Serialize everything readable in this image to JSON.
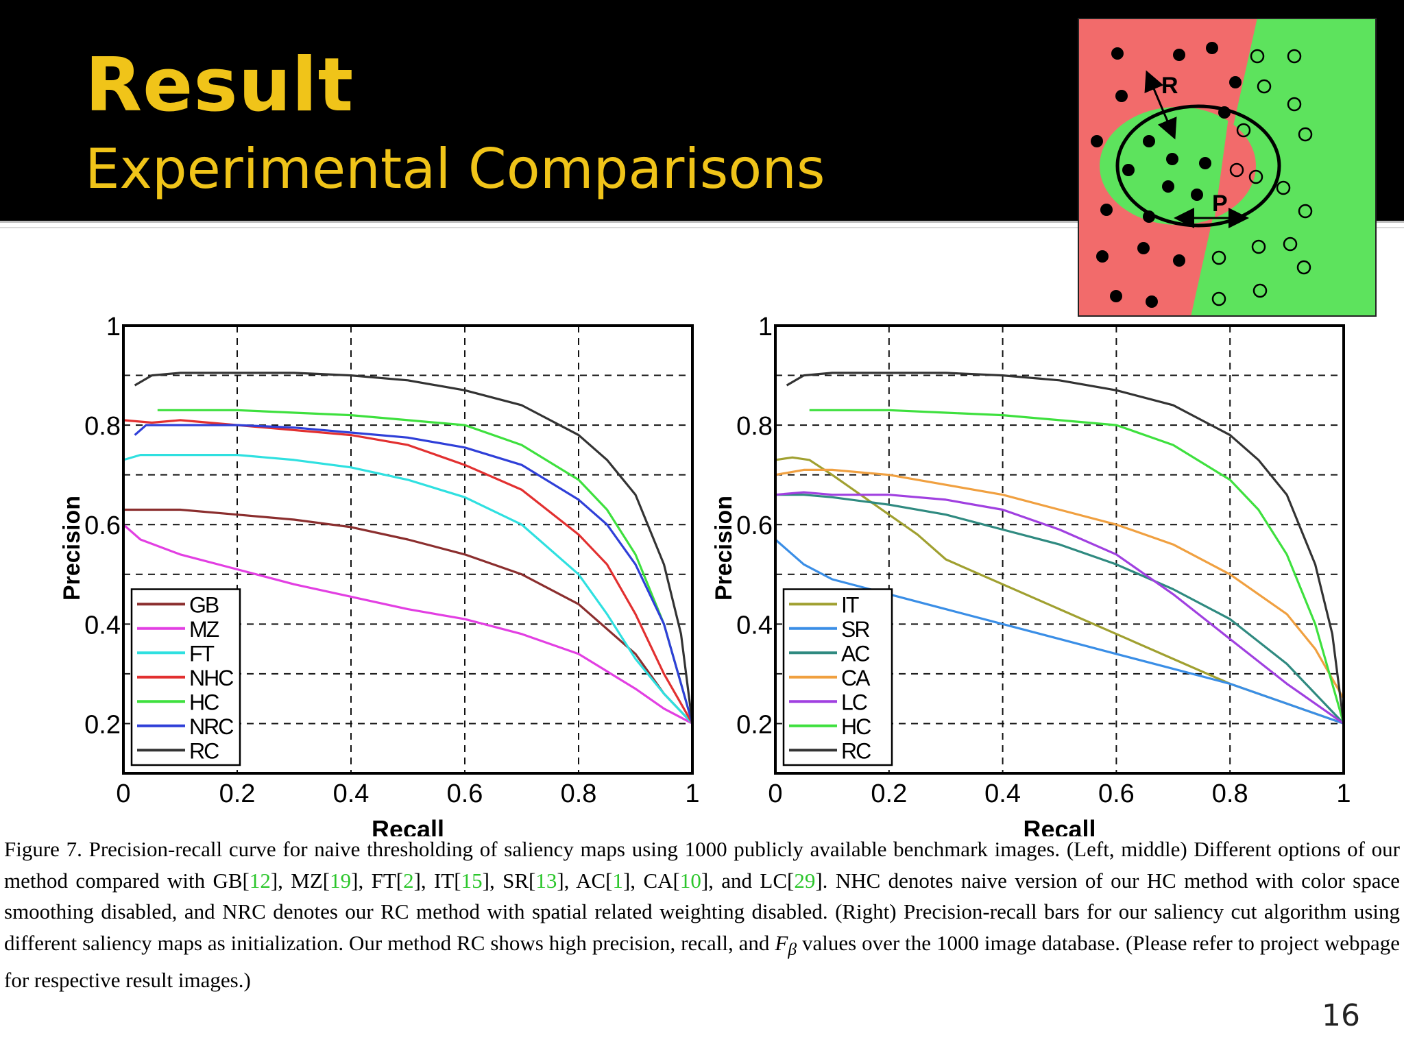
{
  "slide": {
    "title": "Result",
    "subtitle": "Experimental Comparisons",
    "page_number": "16",
    "colors": {
      "header_bg": "#000000",
      "title": "#f0c419"
    }
  },
  "diagram": {
    "labels": {
      "r": "R",
      "p": "P"
    },
    "colors": {
      "red": "#f26b6b",
      "green": "#5de35d"
    }
  },
  "caption": {
    "parts": [
      "Figure 7. Precision-recall curve for naive thresholding of saliency maps using 1000 publicly available benchmark images. (Left, middle) Different options of our method compared with GB[",
      "12",
      "], MZ[",
      "19",
      "], FT[",
      "2",
      "], IT[",
      "15",
      "], SR[",
      "13",
      "], AC[",
      "1",
      "], CA[",
      "10",
      "], and LC[",
      "29",
      "]. NHC denotes naive version of our HC method with color space smoothing disabled, and NRC denotes our RC method with spatial related weighting disabled. (Right) Precision-recall bars for our saliency cut algorithm using different saliency maps as initialization. Our method RC shows high precision, recall, and ",
      "F",
      "β",
      " values over the 1000 image database. (Please refer to project webpage for respective result images.)"
    ]
  },
  "chart_data": [
    {
      "type": "line",
      "xlabel": "Recall",
      "ylabel": "Precision",
      "xlim": [
        0,
        1
      ],
      "ylim": [
        0.1,
        1
      ],
      "xticks": [
        "0",
        "0.2",
        "0.4",
        "0.6",
        "0.8",
        "1"
      ],
      "yticks": [
        "0.2",
        "0.4",
        "0.6",
        "0.8",
        "1"
      ],
      "grid": true,
      "legend_position": "bottom-left",
      "series": [
        {
          "name": "GB",
          "color": "#8b2e2e",
          "points": [
            [
              0,
              0.63
            ],
            [
              0.05,
              0.63
            ],
            [
              0.1,
              0.63
            ],
            [
              0.2,
              0.62
            ],
            [
              0.3,
              0.61
            ],
            [
              0.4,
              0.595
            ],
            [
              0.5,
              0.57
            ],
            [
              0.6,
              0.54
            ],
            [
              0.7,
              0.5
            ],
            [
              0.8,
              0.44
            ],
            [
              0.9,
              0.34
            ],
            [
              0.95,
              0.26
            ],
            [
              1,
              0.2
            ]
          ]
        },
        {
          "name": "MZ",
          "color": "#e23fe2",
          "points": [
            [
              0,
              0.6
            ],
            [
              0.03,
              0.57
            ],
            [
              0.1,
              0.54
            ],
            [
              0.2,
              0.51
            ],
            [
              0.3,
              0.48
            ],
            [
              0.4,
              0.455
            ],
            [
              0.5,
              0.43
            ],
            [
              0.6,
              0.41
            ],
            [
              0.7,
              0.38
            ],
            [
              0.8,
              0.34
            ],
            [
              0.9,
              0.27
            ],
            [
              0.95,
              0.23
            ],
            [
              1,
              0.2
            ]
          ]
        },
        {
          "name": "FT",
          "color": "#2fe0e0",
          "points": [
            [
              0,
              0.73
            ],
            [
              0.03,
              0.74
            ],
            [
              0.1,
              0.74
            ],
            [
              0.2,
              0.74
            ],
            [
              0.3,
              0.73
            ],
            [
              0.4,
              0.715
            ],
            [
              0.5,
              0.69
            ],
            [
              0.6,
              0.655
            ],
            [
              0.7,
              0.6
            ],
            [
              0.8,
              0.5
            ],
            [
              0.85,
              0.42
            ],
            [
              0.9,
              0.33
            ],
            [
              0.95,
              0.26
            ],
            [
              1,
              0.2
            ]
          ]
        },
        {
          "name": "NHC",
          "color": "#e23030",
          "points": [
            [
              0,
              0.81
            ],
            [
              0.05,
              0.805
            ],
            [
              0.1,
              0.81
            ],
            [
              0.2,
              0.8
            ],
            [
              0.3,
              0.79
            ],
            [
              0.4,
              0.78
            ],
            [
              0.5,
              0.76
            ],
            [
              0.6,
              0.72
            ],
            [
              0.7,
              0.67
            ],
            [
              0.8,
              0.58
            ],
            [
              0.85,
              0.52
            ],
            [
              0.9,
              0.42
            ],
            [
              0.95,
              0.3
            ],
            [
              1,
              0.2
            ]
          ]
        },
        {
          "name": "HC",
          "color": "#3ee03e",
          "points": [
            [
              0.06,
              0.83
            ],
            [
              0.1,
              0.83
            ],
            [
              0.2,
              0.83
            ],
            [
              0.3,
              0.825
            ],
            [
              0.4,
              0.82
            ],
            [
              0.5,
              0.81
            ],
            [
              0.6,
              0.8
            ],
            [
              0.7,
              0.76
            ],
            [
              0.8,
              0.69
            ],
            [
              0.85,
              0.63
            ],
            [
              0.9,
              0.54
            ],
            [
              0.95,
              0.4
            ],
            [
              1,
              0.2
            ]
          ]
        },
        {
          "name": "NRC",
          "color": "#2f3fd8",
          "points": [
            [
              0.02,
              0.78
            ],
            [
              0.04,
              0.8
            ],
            [
              0.1,
              0.8
            ],
            [
              0.2,
              0.8
            ],
            [
              0.3,
              0.795
            ],
            [
              0.4,
              0.785
            ],
            [
              0.5,
              0.775
            ],
            [
              0.6,
              0.755
            ],
            [
              0.7,
              0.72
            ],
            [
              0.8,
              0.65
            ],
            [
              0.85,
              0.6
            ],
            [
              0.9,
              0.52
            ],
            [
              0.95,
              0.4
            ],
            [
              1,
              0.2
            ]
          ]
        },
        {
          "name": "RC",
          "color": "#333333",
          "points": [
            [
              0.02,
              0.88
            ],
            [
              0.05,
              0.9
            ],
            [
              0.1,
              0.905
            ],
            [
              0.2,
              0.905
            ],
            [
              0.3,
              0.905
            ],
            [
              0.4,
              0.9
            ],
            [
              0.5,
              0.89
            ],
            [
              0.6,
              0.87
            ],
            [
              0.7,
              0.84
            ],
            [
              0.8,
              0.78
            ],
            [
              0.85,
              0.73
            ],
            [
              0.9,
              0.66
            ],
            [
              0.95,
              0.52
            ],
            [
              0.98,
              0.38
            ],
            [
              1,
              0.2
            ]
          ]
        }
      ]
    },
    {
      "type": "line",
      "xlabel": "Recall",
      "ylabel": "Precision",
      "xlim": [
        0,
        1
      ],
      "ylim": [
        0.1,
        1
      ],
      "xticks": [
        "0",
        "0.2",
        "0.4",
        "0.6",
        "0.8",
        "1"
      ],
      "yticks": [
        "0.2",
        "0.4",
        "0.6",
        "0.8",
        "1"
      ],
      "grid": true,
      "legend_position": "bottom-left",
      "series": [
        {
          "name": "IT",
          "color": "#a0a030",
          "points": [
            [
              0,
              0.73
            ],
            [
              0.03,
              0.735
            ],
            [
              0.06,
              0.73
            ],
            [
              0.1,
              0.7
            ],
            [
              0.15,
              0.66
            ],
            [
              0.2,
              0.62
            ],
            [
              0.25,
              0.58
            ],
            [
              0.3,
              0.53
            ],
            [
              0.4,
              0.48
            ],
            [
              0.5,
              0.43
            ],
            [
              0.6,
              0.38
            ],
            [
              0.7,
              0.33
            ],
            [
              0.8,
              0.28
            ],
            [
              0.9,
              0.24
            ],
            [
              1,
              0.2
            ]
          ]
        },
        {
          "name": "SR",
          "color": "#3a8ee6",
          "points": [
            [
              0,
              0.57
            ],
            [
              0.05,
              0.52
            ],
            [
              0.1,
              0.49
            ],
            [
              0.2,
              0.46
            ],
            [
              0.3,
              0.43
            ],
            [
              0.4,
              0.4
            ],
            [
              0.5,
              0.37
            ],
            [
              0.6,
              0.34
            ],
            [
              0.7,
              0.31
            ],
            [
              0.8,
              0.28
            ],
            [
              0.9,
              0.24
            ],
            [
              1,
              0.2
            ]
          ]
        },
        {
          "name": "AC",
          "color": "#2f8a80",
          "points": [
            [
              0,
              0.66
            ],
            [
              0.05,
              0.66
            ],
            [
              0.1,
              0.655
            ],
            [
              0.2,
              0.64
            ],
            [
              0.3,
              0.62
            ],
            [
              0.4,
              0.59
            ],
            [
              0.5,
              0.56
            ],
            [
              0.6,
              0.52
            ],
            [
              0.7,
              0.47
            ],
            [
              0.8,
              0.41
            ],
            [
              0.9,
              0.32
            ],
            [
              0.95,
              0.26
            ],
            [
              1,
              0.2
            ]
          ]
        },
        {
          "name": "CA",
          "color": "#f0a040",
          "points": [
            [
              0,
              0.7
            ],
            [
              0.05,
              0.71
            ],
            [
              0.1,
              0.71
            ],
            [
              0.2,
              0.7
            ],
            [
              0.3,
              0.68
            ],
            [
              0.4,
              0.66
            ],
            [
              0.5,
              0.63
            ],
            [
              0.6,
              0.6
            ],
            [
              0.7,
              0.56
            ],
            [
              0.8,
              0.5
            ],
            [
              0.9,
              0.42
            ],
            [
              0.95,
              0.35
            ],
            [
              1,
              0.25
            ]
          ]
        },
        {
          "name": "LC",
          "color": "#a040e0",
          "points": [
            [
              0,
              0.66
            ],
            [
              0.05,
              0.665
            ],
            [
              0.1,
              0.66
            ],
            [
              0.2,
              0.66
            ],
            [
              0.3,
              0.65
            ],
            [
              0.4,
              0.63
            ],
            [
              0.5,
              0.59
            ],
            [
              0.6,
              0.54
            ],
            [
              0.7,
              0.46
            ],
            [
              0.8,
              0.37
            ],
            [
              0.9,
              0.28
            ],
            [
              1,
              0.2
            ]
          ]
        },
        {
          "name": "HC",
          "color": "#3ee03e",
          "points": [
            [
              0.06,
              0.83
            ],
            [
              0.1,
              0.83
            ],
            [
              0.2,
              0.83
            ],
            [
              0.3,
              0.825
            ],
            [
              0.4,
              0.82
            ],
            [
              0.5,
              0.81
            ],
            [
              0.6,
              0.8
            ],
            [
              0.7,
              0.76
            ],
            [
              0.8,
              0.69
            ],
            [
              0.85,
              0.63
            ],
            [
              0.9,
              0.54
            ],
            [
              0.95,
              0.4
            ],
            [
              1,
              0.2
            ]
          ]
        },
        {
          "name": "RC",
          "color": "#333333",
          "points": [
            [
              0.02,
              0.88
            ],
            [
              0.05,
              0.9
            ],
            [
              0.1,
              0.905
            ],
            [
              0.2,
              0.905
            ],
            [
              0.3,
              0.905
            ],
            [
              0.4,
              0.9
            ],
            [
              0.5,
              0.89
            ],
            [
              0.6,
              0.87
            ],
            [
              0.7,
              0.84
            ],
            [
              0.8,
              0.78
            ],
            [
              0.85,
              0.73
            ],
            [
              0.9,
              0.66
            ],
            [
              0.95,
              0.52
            ],
            [
              0.98,
              0.38
            ],
            [
              1,
              0.2
            ]
          ]
        }
      ]
    }
  ]
}
